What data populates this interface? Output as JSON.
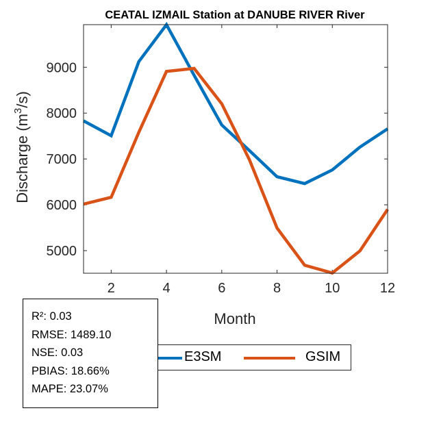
{
  "chart_data": {
    "type": "line",
    "title": "CEATAL IZMAIL  Station at  DANUBE RIVER  River",
    "xlabel": "Month",
    "ylabel": "Discharge (m³/s)",
    "ylabel_parts": {
      "pre": "Discharge (m",
      "sup": "3",
      "post": "/s)"
    },
    "x": [
      1,
      2,
      3,
      4,
      5,
      6,
      7,
      8,
      9,
      10,
      11,
      12
    ],
    "xlim": [
      1,
      12
    ],
    "ylim": [
      4507,
      9930
    ],
    "xticks": [
      2,
      4,
      6,
      8,
      10,
      12
    ],
    "yticks": [
      5000,
      6000,
      7000,
      8000,
      9000
    ],
    "grid": false,
    "series": [
      {
        "name": "E3SM",
        "color": "#0072BD",
        "values": [
          7831,
          7507,
          9124,
          9930,
          8826,
          7741,
          7184,
          6612,
          6463,
          6761,
          7259,
          7657
        ]
      },
      {
        "name": "GSIM",
        "color": "#D95319",
        "values": [
          6015,
          6164,
          7582,
          8910,
          8975,
          8204,
          6985,
          5493,
          4682,
          4512,
          4995,
          5900
        ]
      }
    ],
    "legend": {
      "placement": "bottom",
      "entries": [
        "E3SM",
        "GSIM"
      ]
    },
    "annotations": [
      "R²: 0.03",
      "RMSE: 1489.10",
      "NSE: 0.03",
      "PBIAS: 18.66%",
      "MAPE: 23.07%"
    ]
  }
}
